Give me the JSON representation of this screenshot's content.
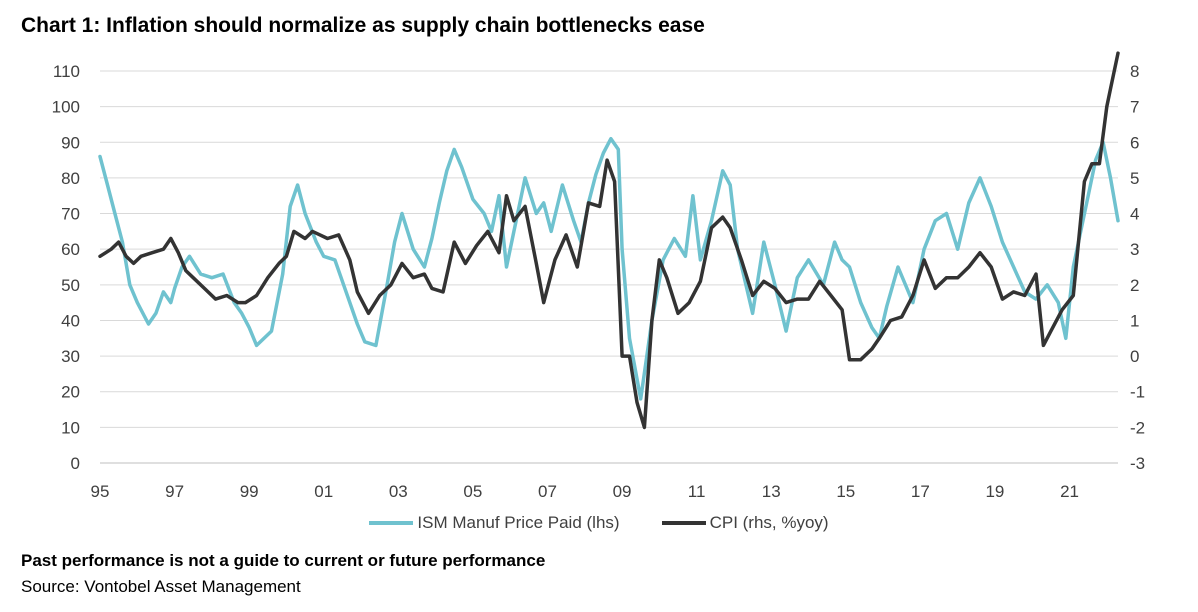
{
  "title": "Chart 1: Inflation should normalize as supply chain bottlenecks ease",
  "note": "Past performance is not a guide to current or future performance",
  "source": "Source: Vontobel Asset Management",
  "colors": {
    "ism": "#6FC2CF",
    "cpi": "#333333",
    "grid": "#D9D9D9",
    "text": "#404040"
  },
  "chart_data": {
    "type": "line",
    "x_tick_labels": [
      "95",
      "97",
      "99",
      "01",
      "03",
      "05",
      "07",
      "09",
      "11",
      "13",
      "15",
      "17",
      "19",
      "21"
    ],
    "x_tick_years": [
      1995,
      1997,
      1999,
      2001,
      2003,
      2005,
      2007,
      2009,
      2011,
      2013,
      2015,
      2017,
      2019,
      2021
    ],
    "xlim": [
      1995,
      2022.3
    ],
    "y_left": {
      "ticks": [
        0,
        10,
        20,
        30,
        40,
        50,
        60,
        70,
        80,
        90,
        100,
        110
      ],
      "lim": [
        0,
        110
      ]
    },
    "y_right": {
      "ticks": [
        -3,
        -2,
        -1,
        0,
        1,
        2,
        3,
        4,
        5,
        6,
        7,
        8
      ],
      "lim": [
        -3,
        8
      ]
    },
    "legend": [
      "ISM Manuf Price Paid (lhs)",
      "CPI (rhs, %yoy)"
    ],
    "series": [
      {
        "name": "ISM Manuf Price Paid (lhs)",
        "axis": "left",
        "x": [
          1995.0,
          1995.2,
          1995.4,
          1995.6,
          1995.8,
          1996.0,
          1996.3,
          1996.5,
          1996.7,
          1996.9,
          1997.0,
          1997.2,
          1997.4,
          1997.7,
          1998.0,
          1998.3,
          1998.6,
          1998.8,
          1999.0,
          1999.2,
          1999.6,
          1999.9,
          2000.1,
          2000.3,
          2000.5,
          2000.8,
          2001.0,
          2001.3,
          2001.6,
          2001.9,
          2002.1,
          2002.4,
          2002.7,
          2002.9,
          2003.1,
          2003.4,
          2003.7,
          2003.9,
          2004.1,
          2004.3,
          2004.5,
          2004.7,
          2005.0,
          2005.3,
          2005.5,
          2005.7,
          2005.9,
          2006.1,
          2006.4,
          2006.7,
          2006.9,
          2007.1,
          2007.4,
          2007.7,
          2007.9,
          2008.1,
          2008.3,
          2008.5,
          2008.7,
          2008.9,
          2009.0,
          2009.2,
          2009.5,
          2009.8,
          2010.1,
          2010.4,
          2010.7,
          2010.9,
          2011.1,
          2011.4,
          2011.7,
          2011.9,
          2012.1,
          2012.5,
          2012.8,
          2013.1,
          2013.4,
          2013.7,
          2014.0,
          2014.4,
          2014.7,
          2014.9,
          2015.1,
          2015.4,
          2015.7,
          2015.9,
          2016.1,
          2016.4,
          2016.8,
          2017.1,
          2017.4,
          2017.7,
          2018.0,
          2018.3,
          2018.6,
          2018.9,
          2019.2,
          2019.5,
          2019.8,
          2020.1,
          2020.4,
          2020.7,
          2020.9,
          2021.1,
          2021.3,
          2021.5,
          2021.7,
          2021.9,
          2022.1,
          2022.3
        ],
        "y": [
          86,
          78,
          70,
          62,
          50,
          45,
          39,
          42,
          48,
          45,
          49,
          55,
          58,
          53,
          52,
          53,
          45,
          42,
          38,
          33,
          37,
          53,
          72,
          78,
          70,
          62,
          58,
          57,
          48,
          39,
          34,
          33,
          50,
          62,
          70,
          60,
          55,
          63,
          73,
          82,
          88,
          83,
          74,
          70,
          65,
          75,
          55,
          65,
          80,
          70,
          73,
          65,
          78,
          68,
          62,
          73,
          81,
          87,
          91,
          88,
          60,
          35,
          18,
          40,
          57,
          63,
          58,
          75,
          57,
          68,
          82,
          78,
          60,
          42,
          62,
          50,
          37,
          52,
          57,
          50,
          62,
          57,
          55,
          45,
          38,
          35,
          44,
          55,
          45,
          60,
          68,
          70,
          60,
          73,
          80,
          72,
          62,
          55,
          48,
          46,
          50,
          45,
          35,
          55,
          65,
          75,
          85,
          90,
          80,
          68
        ]
      },
      {
        "name": "CPI (rhs, %yoy)",
        "axis": "right",
        "x": [
          1995.0,
          1995.3,
          1995.5,
          1995.7,
          1995.9,
          1996.1,
          1996.4,
          1996.7,
          1996.9,
          1997.1,
          1997.3,
          1997.5,
          1997.8,
          1998.1,
          1998.4,
          1998.7,
          1998.9,
          1999.2,
          1999.5,
          1999.8,
          2000.0,
          2000.2,
          2000.5,
          2000.7,
          2000.9,
          2001.1,
          2001.4,
          2001.7,
          2001.9,
          2002.2,
          2002.5,
          2002.8,
          2003.1,
          2003.4,
          2003.7,
          2003.9,
          2004.2,
          2004.5,
          2004.8,
          2005.1,
          2005.4,
          2005.7,
          2005.9,
          2006.1,
          2006.4,
          2006.7,
          2006.9,
          2007.2,
          2007.5,
          2007.8,
          2008.1,
          2008.4,
          2008.6,
          2008.8,
          2009.0,
          2009.2,
          2009.4,
          2009.6,
          2009.8,
          2010.0,
          2010.2,
          2010.5,
          2010.8,
          2011.1,
          2011.4,
          2011.7,
          2011.9,
          2012.2,
          2012.5,
          2012.8,
          2013.1,
          2013.4,
          2013.7,
          2014.0,
          2014.3,
          2014.6,
          2014.9,
          2015.1,
          2015.4,
          2015.7,
          2015.9,
          2016.2,
          2016.5,
          2016.8,
          2017.1,
          2017.4,
          2017.7,
          2018.0,
          2018.3,
          2018.6,
          2018.9,
          2019.2,
          2019.5,
          2019.8,
          2020.1,
          2020.3,
          2020.5,
          2020.8,
          2021.1,
          2021.4,
          2021.6,
          2021.8,
          2022.0,
          2022.1,
          2022.3
        ],
        "y": [
          2.8,
          3.0,
          3.2,
          2.8,
          2.6,
          2.8,
          2.9,
          3.0,
          3.3,
          2.9,
          2.4,
          2.2,
          1.9,
          1.6,
          1.7,
          1.5,
          1.5,
          1.7,
          2.2,
          2.6,
          2.8,
          3.5,
          3.3,
          3.5,
          3.4,
          3.3,
          3.4,
          2.7,
          1.8,
          1.2,
          1.7,
          2.0,
          2.6,
          2.2,
          2.3,
          1.9,
          1.8,
          3.2,
          2.6,
          3.1,
          3.5,
          2.9,
          4.5,
          3.8,
          4.2,
          2.6,
          1.5,
          2.7,
          3.4,
          2.5,
          4.3,
          4.2,
          5.5,
          4.9,
          0.0,
          0.0,
          -1.3,
          -2.0,
          1.0,
          2.7,
          2.2,
          1.2,
          1.5,
          2.1,
          3.6,
          3.9,
          3.6,
          2.7,
          1.7,
          2.1,
          1.9,
          1.5,
          1.6,
          1.6,
          2.1,
          1.7,
          1.3,
          -0.1,
          -0.1,
          0.2,
          0.5,
          1.0,
          1.1,
          1.7,
          2.7,
          1.9,
          2.2,
          2.2,
          2.5,
          2.9,
          2.5,
          1.6,
          1.8,
          1.7,
          2.3,
          0.3,
          0.7,
          1.3,
          1.7,
          4.9,
          5.4,
          5.4,
          7.0,
          7.5,
          8.5
        ]
      }
    ]
  }
}
